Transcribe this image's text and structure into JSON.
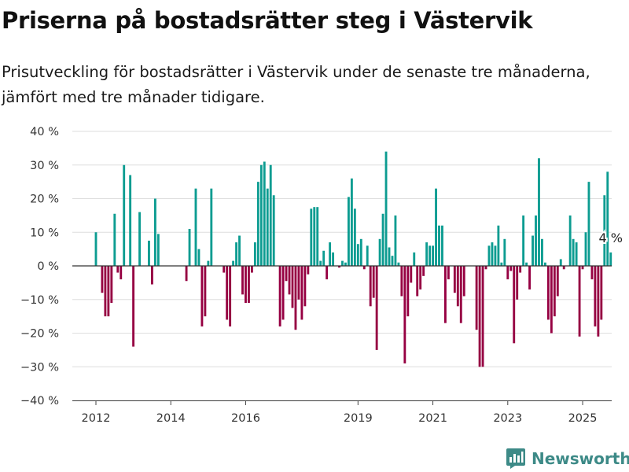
{
  "title": "Priserna på bostadsrätter steg i Västervik",
  "subtitle": "Prisutveckling för bostadsrätter i Västervik under de senaste tre månaderna, jämfört med tre månader tidigare.",
  "brand": {
    "name": "Newsworthy",
    "color": "#3d8a87"
  },
  "colors": {
    "positive": "#0c9c91",
    "negative": "#960042"
  },
  "chart_data": {
    "type": "bar",
    "title": "Priserna på bostadsrätter steg i Västervik",
    "subtitle": "Prisutveckling för bostadsrätter i Västervik under de senaste tre månaderna, jämfört med tre månader tidigare.",
    "xlabel": "",
    "ylabel": "",
    "x_start": "2012-01",
    "x_end": "2025-02",
    "x_ticks": [
      "2012",
      "2014",
      "2016",
      "2019",
      "2021",
      "2023",
      "2025"
    ],
    "y_ticks": [
      "40 %",
      "30 %",
      "20 %",
      "10 %",
      "0 %",
      "−10 %",
      "−20 %",
      "−30 %",
      "−40 %"
    ],
    "ylim": [
      -40,
      40
    ],
    "grid": true,
    "last_value_label": "4 %",
    "values": [
      10,
      null,
      -8,
      -15,
      -15,
      -11,
      15.5,
      -2,
      -4,
      30,
      null,
      27,
      -24,
      null,
      16,
      null,
      null,
      7.5,
      -5.5,
      20,
      9.5,
      null,
      null,
      null,
      null,
      null,
      null,
      null,
      null,
      -4.5,
      11,
      null,
      23,
      5,
      -18,
      -15,
      1.5,
      23,
      null,
      null,
      null,
      -2,
      -16,
      -18,
      1.5,
      7,
      9,
      -8.5,
      -11,
      -11,
      -2,
      7,
      25,
      30,
      31,
      23,
      30,
      21,
      null,
      -18,
      -16,
      -4.5,
      -8.5,
      -12.5,
      -19,
      -10,
      -16,
      -12,
      -2.5,
      17,
      17.5,
      17.5,
      1.5,
      4.5,
      -4,
      7,
      4,
      null,
      -0.5,
      1.5,
      1,
      20.5,
      26,
      17,
      6.5,
      8,
      -1,
      6,
      -12,
      -9.5,
      -25,
      8,
      15.5,
      34,
      5.5,
      3,
      15,
      1,
      -9,
      -29,
      -15,
      -5,
      4,
      -9,
      -7,
      -3,
      7,
      6,
      6,
      23,
      12,
      12,
      -17,
      -4,
      null,
      -8,
      -12,
      -17,
      -9,
      null,
      null,
      null,
      -19,
      -30,
      -30,
      -1,
      6,
      7,
      6,
      12,
      1,
      8,
      -4,
      -1.5,
      -23,
      -10,
      -2,
      15,
      1,
      -7,
      9,
      15,
      32,
      8,
      1,
      -16,
      -20,
      -15,
      -9,
      2,
      -1,
      null,
      15,
      8,
      7,
      -21,
      -1,
      10,
      25,
      -4,
      -18,
      -21,
      -16,
      21,
      28,
      4
    ]
  }
}
